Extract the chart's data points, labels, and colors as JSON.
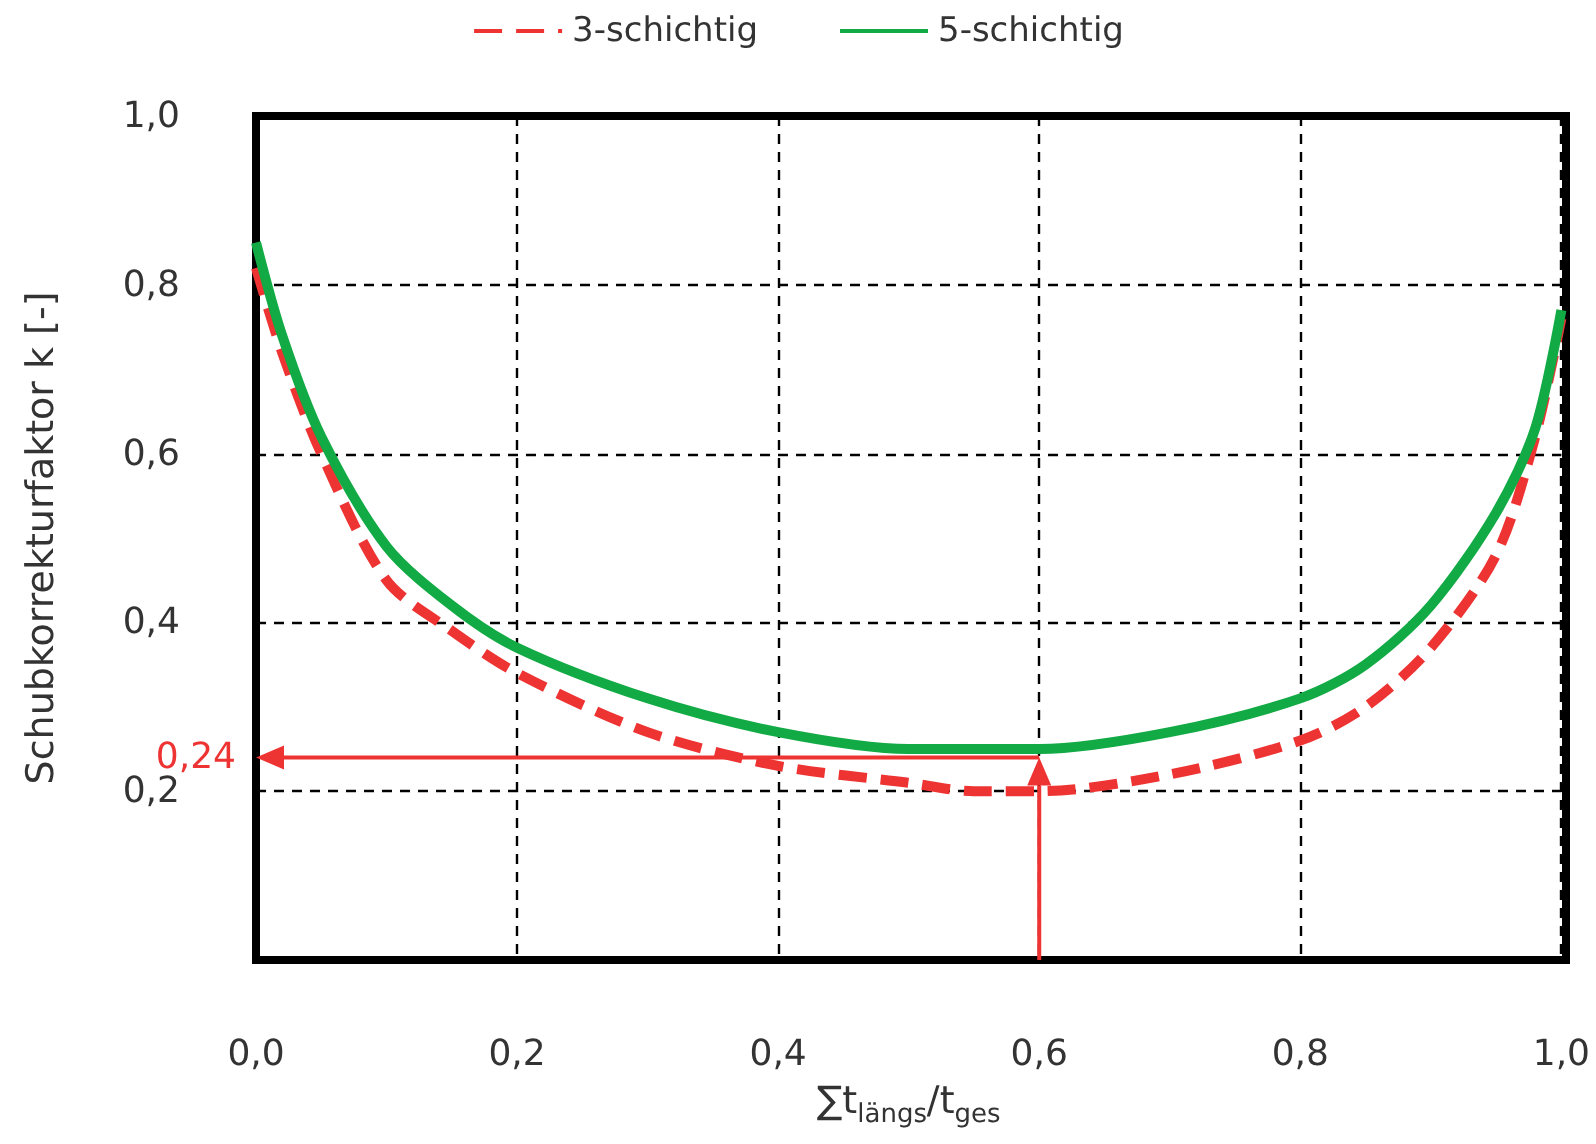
{
  "chart_data": {
    "type": "line",
    "xlabel": "∑t$_{längs}$/t$_{ges}$",
    "ylabel": "Schubkorrekturfaktor k [-]",
    "xlim": [
      0,
      1
    ],
    "xticks": [
      {
        "value": 0,
        "label": "0,0"
      },
      {
        "value": 0.2,
        "label": "0,2"
      },
      {
        "value": 0.4,
        "label": "0,4"
      },
      {
        "value": 0.6,
        "label": "0,6"
      },
      {
        "value": 0.8,
        "label": "0,8"
      },
      {
        "value": 1,
        "label": "1,0"
      }
    ],
    "ylim": [
      0,
      1
    ],
    "yticks": [
      {
        "value": 0.2,
        "label": "0,2"
      },
      {
        "value": 0.4,
        "label": "0,4"
      },
      {
        "value": 0.6,
        "label": "0,6"
      },
      {
        "value": 0.8,
        "label": "0,8"
      },
      {
        "value": 1,
        "label": "1,0"
      }
    ],
    "grid": true,
    "legend": "top",
    "marker": "none",
    "ref_lines": [
      {
        "axis": "x",
        "value": 0.6,
        "color": "#ee3333"
      },
      {
        "axis": "y",
        "value": 0.24,
        "label": "0,24",
        "color": "#ee3333"
      }
    ],
    "series": [
      {
        "name": "3-schichtig",
        "color": "#ee3333",
        "line_style": "dashed",
        "x": [
          0,
          0.02,
          0.05,
          0.1,
          0.15,
          0.2,
          0.3,
          0.4,
          0.5,
          0.55,
          0.6,
          0.7,
          0.8,
          0.85,
          0.9,
          0.95,
          0.98,
          1.0
        ],
        "values": [
          0.82,
          0.72,
          0.6,
          0.45,
          0.39,
          0.34,
          0.27,
          0.23,
          0.21,
          0.2,
          0.2,
          0.22,
          0.26,
          0.3,
          0.37,
          0.48,
          0.62,
          0.76
        ]
      },
      {
        "name": "5-schichtig",
        "color": "#11aa44",
        "line_style": "solid",
        "x": [
          0,
          0.02,
          0.05,
          0.1,
          0.15,
          0.2,
          0.3,
          0.4,
          0.5,
          0.55,
          0.6,
          0.7,
          0.8,
          0.85,
          0.9,
          0.95,
          0.98,
          1.0
        ],
        "values": [
          0.85,
          0.74,
          0.62,
          0.49,
          0.42,
          0.37,
          0.31,
          0.27,
          0.25,
          0.25,
          0.25,
          0.27,
          0.31,
          0.35,
          0.42,
          0.53,
          0.63,
          0.77
        ]
      }
    ]
  }
}
